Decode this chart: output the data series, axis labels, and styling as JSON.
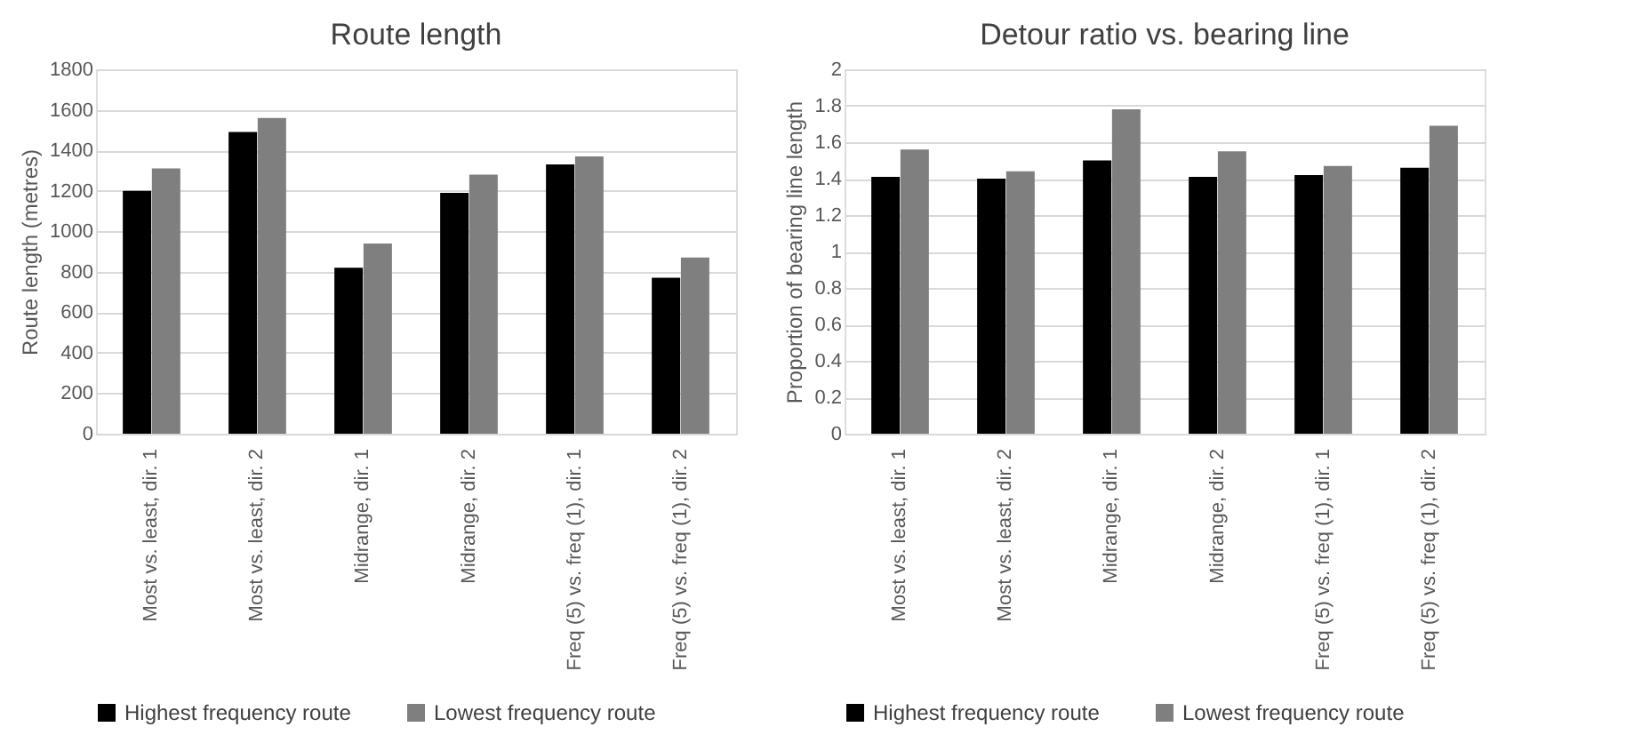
{
  "chart_data": [
    {
      "type": "bar",
      "title": "Route length",
      "ylabel": "Route length (metres)",
      "categories": [
        "Most vs. least, dir. 1",
        "Most vs. least, dir. 2",
        "Midrange, dir. 1",
        "Midrange, dir. 2",
        "Freq (5) vs. freq (1), dir. 1",
        "Freq (5) vs. freq (1), dir. 2"
      ],
      "series": [
        {
          "name": "Highest frequency route",
          "color": "#000000",
          "values": [
            1200,
            1490,
            820,
            1190,
            1330,
            770
          ]
        },
        {
          "name": "Lowest frequency route",
          "color": "#7f7f7f",
          "values": [
            1310,
            1560,
            940,
            1280,
            1370,
            870
          ]
        }
      ],
      "ylim": [
        0,
        1800
      ],
      "yticks": [
        0,
        200,
        400,
        600,
        800,
        1000,
        1200,
        1400,
        1600,
        1800
      ],
      "grid": "y",
      "legend": "bottom"
    },
    {
      "type": "bar",
      "title": "Detour ratio vs. bearing line",
      "ylabel": "Proportion of bearing line length",
      "categories": [
        "Most vs. least, dir. 1",
        "Most vs. least, dir. 2",
        "Midrange, dir. 1",
        "Midrange, dir. 2",
        "Freq (5) vs. freq (1), dir. 1",
        "Freq (5) vs. freq (1), dir. 2"
      ],
      "series": [
        {
          "name": "Highest frequency route",
          "color": "#000000",
          "values": [
            1.41,
            1.4,
            1.5,
            1.41,
            1.42,
            1.46
          ]
        },
        {
          "name": "Lowest frequency route",
          "color": "#7f7f7f",
          "values": [
            1.56,
            1.44,
            1.78,
            1.55,
            1.47,
            1.69
          ]
        }
      ],
      "ylim": [
        0,
        2
      ],
      "yticks": [
        0,
        {
          "value": 0.2,
          "label": "0.2"
        },
        {
          "value": 0.4,
          "label": "0.4"
        },
        {
          "value": 0.6,
          "label": "0.6"
        },
        {
          "value": 0.8,
          "label": "0.8"
        },
        1,
        {
          "value": 1.2,
          "label": "1.2"
        },
        {
          "value": 1.4,
          "label": "1.4"
        },
        {
          "value": 1.6,
          "label": "1.6"
        },
        {
          "value": 1.8,
          "label": "1.8"
        },
        2
      ],
      "grid": "y",
      "legend": "bottom"
    }
  ]
}
